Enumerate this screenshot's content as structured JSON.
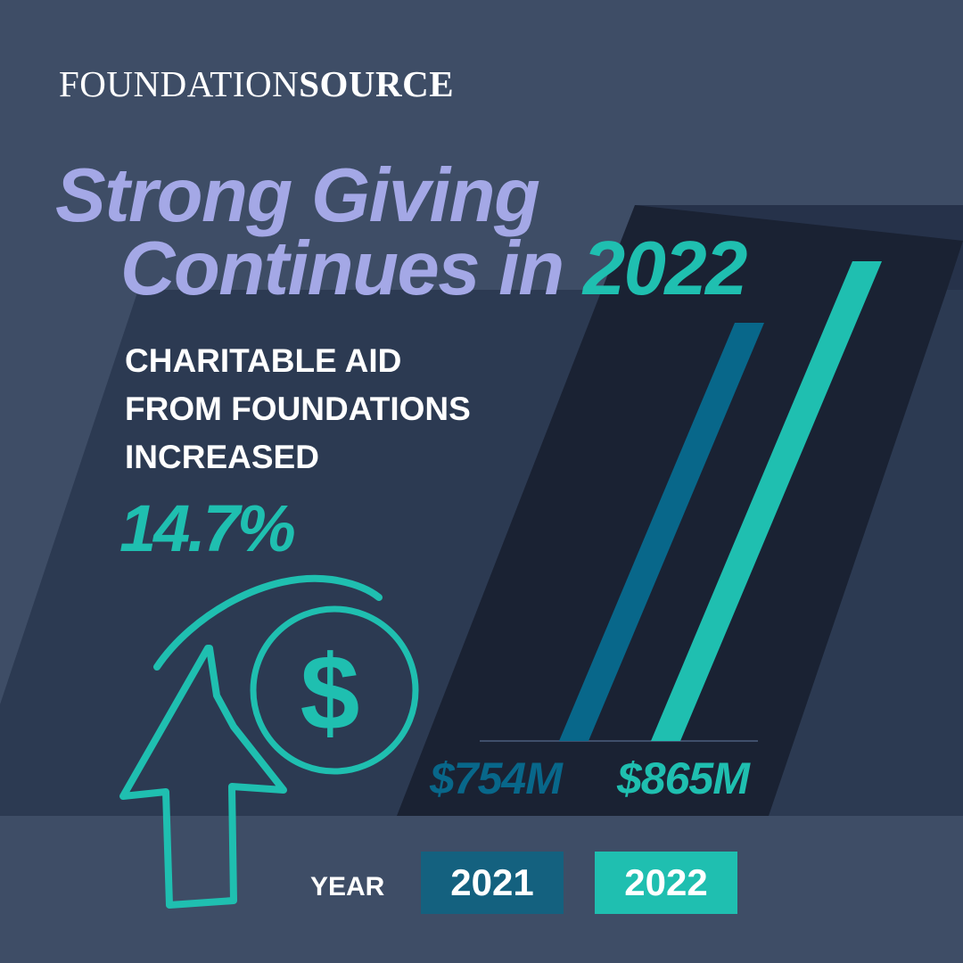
{
  "brand": {
    "part1": "FOUNDATION",
    "part2": "SOURCE"
  },
  "headline": {
    "line1": "Strong Giving",
    "line2_prefix": "Continues in ",
    "line2_accent": "2022"
  },
  "subtitle": {
    "line1": "CHARITABLE AID",
    "line2": "FROM FOUNDATIONS",
    "line3": "INCREASED"
  },
  "increase": "14.7%",
  "colors": {
    "background": "#3e4d66",
    "panel": "#2c3a52",
    "dark_panel": "#1a2233",
    "headline": "#a4a8e6",
    "accent_teal": "#1fbfb0",
    "accent_blue": "#14617f"
  },
  "icons": {
    "arrow": "up-arrow-icon",
    "coin": "dollar-coin-icon"
  },
  "chart_data": {
    "type": "bar",
    "categories": [
      "2021",
      "2022"
    ],
    "values": [
      754,
      865
    ],
    "value_labels": [
      "$754M",
      "$865M"
    ],
    "xlabel": "YEAR",
    "unit": "$M",
    "colors": [
      "#08678a",
      "#1fbfb0"
    ]
  }
}
